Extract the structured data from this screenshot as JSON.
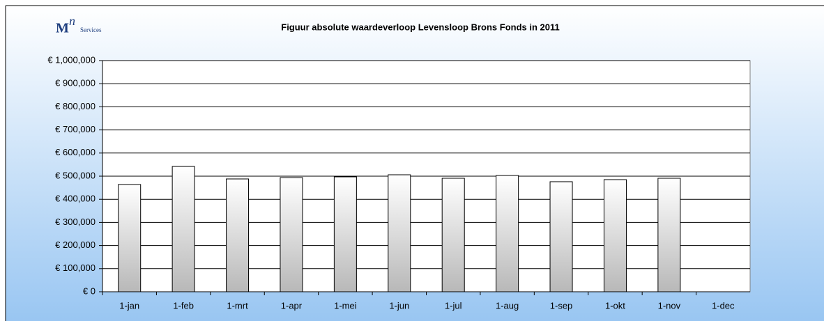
{
  "logo": {
    "mark": "M",
    "sup": "n",
    "name": "Services"
  },
  "chart_data": {
    "type": "bar",
    "title": "Figuur absolute waardeverloop Levensloop Brons Fonds in 2011",
    "categories": [
      "1-jan",
      "1-feb",
      "1-mrt",
      "1-apr",
      "1-mei",
      "1-jun",
      "1-jul",
      "1-aug",
      "1-sep",
      "1-okt",
      "1-nov",
      "1-dec"
    ],
    "values": [
      464000,
      542000,
      488000,
      494000,
      497000,
      506000,
      491000,
      503000,
      476000,
      485000,
      491000,
      null
    ],
    "color": "#ffffff",
    "ylim": [
      0,
      1000000
    ],
    "yticks": [
      {
        "value": 0,
        "label": "€ 0"
      },
      {
        "value": 100000,
        "label": "€ 100,000"
      },
      {
        "value": 200000,
        "label": "€ 200,000"
      },
      {
        "value": 300000,
        "label": "€ 300,000"
      },
      {
        "value": 400000,
        "label": "€ 400,000"
      },
      {
        "value": 500000,
        "label": "€ 500,000"
      },
      {
        "value": 600000,
        "label": "€ 600,000"
      },
      {
        "value": 700000,
        "label": "€ 700,000"
      },
      {
        "value": 800000,
        "label": "€ 800,000"
      },
      {
        "value": 900000,
        "label": "€ 900,000"
      },
      {
        "value": 1000000,
        "label": "€ 1,000,000"
      }
    ],
    "grid": true
  }
}
